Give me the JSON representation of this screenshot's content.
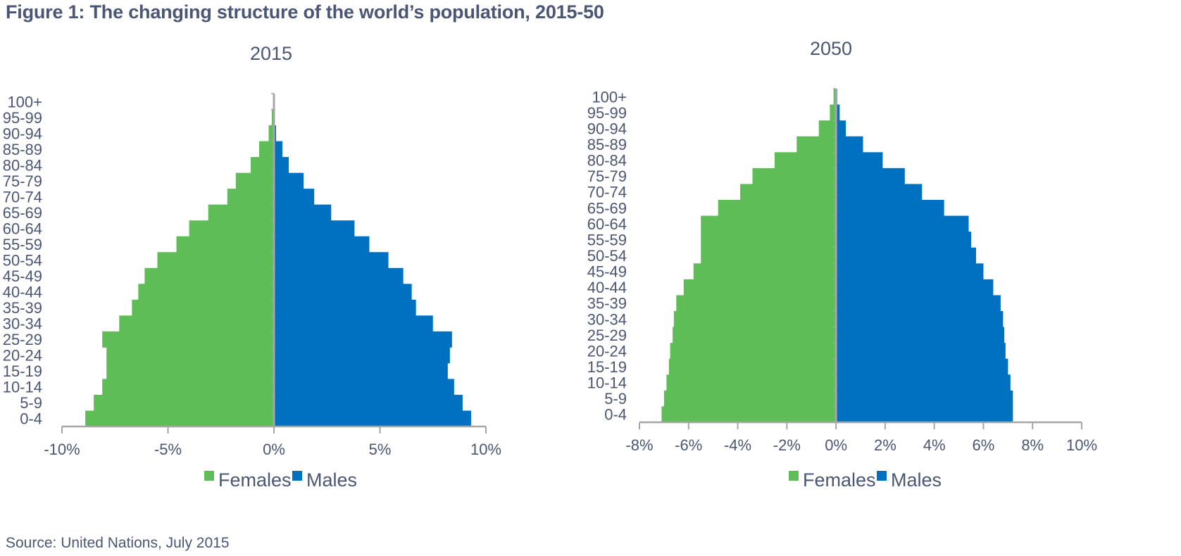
{
  "figure_title": "Figure 1: The changing structure of the world’s population, 2015-50",
  "source": "Source: United Nations, July 2015",
  "colors": {
    "females": "#5ebd57",
    "males": "#0070c0",
    "axis": "#a6a6a6",
    "text": "#4a5673"
  },
  "chart_data": [
    {
      "type": "bar",
      "orientation": "horizontal",
      "title": "2015",
      "categories": [
        "0-4",
        "5-9",
        "10-14",
        "15-19",
        "20-24",
        "25-29",
        "30-34",
        "35-39",
        "40-44",
        "45-49",
        "50-54",
        "55-59",
        "60-64",
        "65-69",
        "70-74",
        "75-79",
        "80-84",
        "85-89",
        "90-94",
        "95-99",
        "100+"
      ],
      "x_ticks": [
        "-10%",
        "-5%",
        "0%",
        "5%",
        "10%"
      ],
      "xlim": [
        -10,
        10
      ],
      "series": [
        {
          "name": "Females",
          "values": [
            -8.9,
            -8.5,
            -8.1,
            -7.9,
            -7.9,
            -8.1,
            -7.3,
            -6.7,
            -6.4,
            -6.1,
            -5.5,
            -4.6,
            -4.0,
            -3.1,
            -2.2,
            -1.8,
            -1.1,
            -0.7,
            -0.25,
            -0.1,
            -0.05
          ]
        },
        {
          "name": "Males",
          "values": [
            9.3,
            8.9,
            8.5,
            8.2,
            8.3,
            8.4,
            7.5,
            6.7,
            6.5,
            6.1,
            5.4,
            4.5,
            3.8,
            2.7,
            1.9,
            1.4,
            0.7,
            0.4,
            0.1,
            0.05,
            0.02
          ]
        }
      ],
      "legend": [
        "Females",
        "Males"
      ],
      "legend_position": "bottom"
    },
    {
      "type": "bar",
      "orientation": "horizontal",
      "title": "2050",
      "categories": [
        "0-4",
        "5-9",
        "10-14",
        "15-19",
        "20-24",
        "25-29",
        "30-34",
        "35-39",
        "40-44",
        "45-49",
        "50-54",
        "55-59",
        "60-64",
        "65-69",
        "70-74",
        "75-79",
        "80-84",
        "85-89",
        "90-94",
        "95-99",
        "100+"
      ],
      "x_ticks": [
        "-8%",
        "-6%",
        "-4%",
        "-2%",
        "0%",
        "2%",
        "4%",
        "6%",
        "8%",
        "10%"
      ],
      "xlim": [
        -8,
        10
      ],
      "series": [
        {
          "name": "Females",
          "values": [
            -7.1,
            -7.0,
            -6.9,
            -6.8,
            -6.75,
            -6.65,
            -6.6,
            -6.5,
            -6.2,
            -5.8,
            -5.5,
            -5.5,
            -5.5,
            -4.8,
            -3.9,
            -3.4,
            -2.5,
            -1.6,
            -0.7,
            -0.25,
            -0.1
          ]
        },
        {
          "name": "Males",
          "values": [
            7.2,
            7.2,
            7.1,
            7.0,
            6.9,
            6.85,
            6.8,
            6.7,
            6.4,
            6.0,
            5.7,
            5.5,
            5.4,
            4.4,
            3.5,
            2.8,
            1.9,
            1.1,
            0.4,
            0.15,
            0.05
          ]
        }
      ],
      "legend": [
        "Females",
        "Males"
      ],
      "legend_position": "bottom"
    }
  ]
}
